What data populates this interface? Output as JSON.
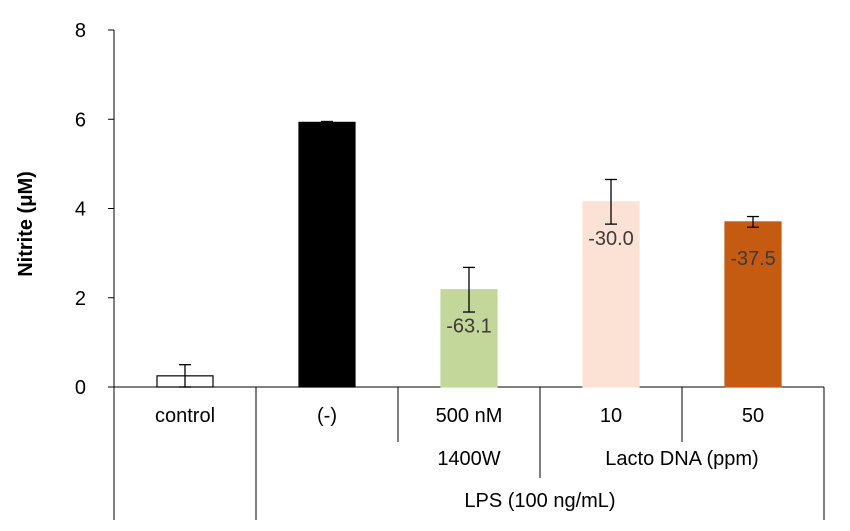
{
  "chart_data": {
    "type": "bar",
    "ylabel": "Nitrite (μM)",
    "ylim": [
      0,
      8
    ],
    "yticks": [
      0,
      2,
      4,
      6,
      8
    ],
    "grid": false,
    "categories": [
      "control",
      "(-)",
      "500 nM",
      "10",
      "50"
    ],
    "values": [
      0.25,
      5.93,
      2.18,
      4.15,
      3.7
    ],
    "errors": [
      0.25,
      0.02,
      0.5,
      0.5,
      0.12
    ],
    "colors": [
      "#ffffff",
      "#000000",
      "#c4d79b",
      "#fbe2d5",
      "#c55a11"
    ],
    "edge_colors": [
      "#000000",
      "#000000",
      "#c4d79b",
      "#fbe2d5",
      "#c55a11"
    ],
    "data_labels": [
      "",
      "",
      "-63.1",
      "-30.0",
      "-37.5"
    ],
    "group_labels": {
      "inhibitor": "1400W",
      "lacto": "Lacto DNA (ppm)",
      "lps": "LPS (100 ng/mL)"
    }
  }
}
